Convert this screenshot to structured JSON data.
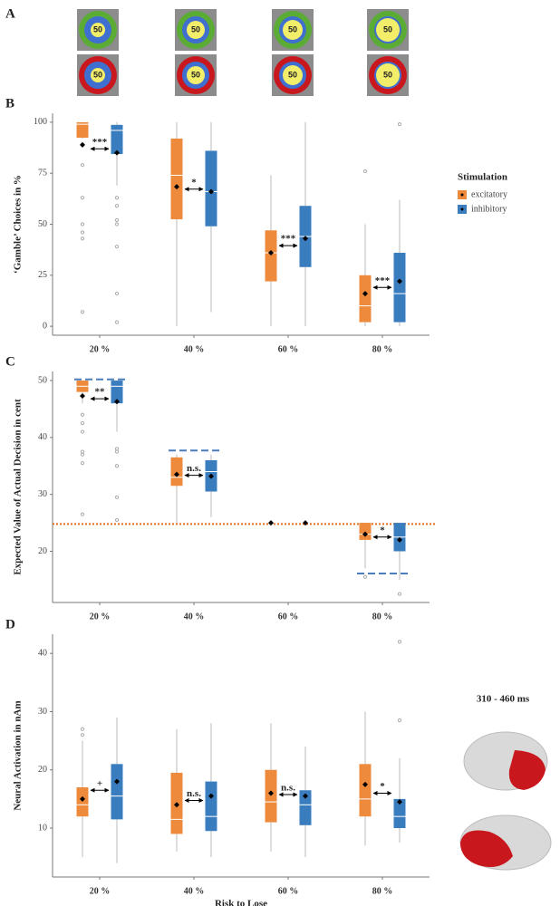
{
  "panel_a": {
    "letter": "A",
    "labels": [
      "50",
      "50",
      "50",
      "50",
      "50",
      "50",
      "50",
      "50"
    ]
  },
  "chart_data": [
    {
      "type": "box",
      "panel_label": "B",
      "y_label": "‘Gamble’ Choices in %",
      "categories": [
        "20 %",
        "40 %",
        "60 %",
        "80 %"
      ],
      "ylim": [
        -4.4,
        104.4
      ],
      "yticks": [
        0,
        25,
        50,
        75,
        100
      ],
      "legend": {
        "title": "Stimulation",
        "position": "right"
      },
      "annotations": [
        "***",
        "*",
        "***",
        "***"
      ],
      "series": [
        {
          "name": "excitatory",
          "color": "#ee8a3c",
          "values": [
            {
              "low": 92,
              "q1": 92.4,
              "median": 99,
              "q3": 100,
              "high": 100,
              "mean": 88.9,
              "outliers": [
                79,
                63,
                50,
                46,
                43,
                7
              ]
            },
            {
              "low": 0,
              "q1": 52.4,
              "median": 74,
              "q3": 92,
              "high": 100,
              "mean": 68.4
            },
            {
              "low": 0,
              "q1": 22,
              "median": 36,
              "q3": 47,
              "high": 74,
              "mean": 36
            },
            {
              "low": 0,
              "q1": 2,
              "median": 10,
              "q3": 25,
              "high": 50,
              "mean": 16,
              "outliers": [
                76
              ]
            }
          ]
        },
        {
          "name": "inhibitory",
          "color": "#3a7dbf",
          "values": [
            {
              "low": 69,
              "q1": 84.4,
              "median": 96,
              "q3": 98.7,
              "high": 100,
              "mean": 85,
              "outliers": [
                63,
                59,
                52,
                50,
                39,
                16,
                2
              ]
            },
            {
              "low": 7,
              "q1": 49,
              "median": 66,
              "q3": 86,
              "high": 100,
              "mean": 66
            },
            {
              "low": 0,
              "q1": 29,
              "median": 44,
              "q3": 59,
              "high": 100,
              "mean": 43
            },
            {
              "low": 0,
              "q1": 2,
              "median": 16,
              "q3": 36,
              "high": 62,
              "mean": 22,
              "outliers": [
                99
              ]
            }
          ]
        }
      ]
    },
    {
      "type": "box",
      "panel_label": "C",
      "y_label": "Expected Value of Actual Decision in cent",
      "categories": [
        "20 %",
        "40 %",
        "60 %",
        "80 %"
      ],
      "ylim": [
        11,
        51.6
      ],
      "yticks": [
        20,
        30,
        40,
        50
      ],
      "annotations": [
        "**",
        "n.s.",
        null,
        "*"
      ],
      "reference_lines": [
        {
          "value": 50.2,
          "color": "#4a7ebb",
          "style": "dashed",
          "category": 0
        },
        {
          "value": 37.7,
          "color": "#4a7ebb",
          "style": "dashed",
          "category": 1
        },
        {
          "value": 16.1,
          "color": "#4a7ebb",
          "style": "dashed",
          "category": 3
        },
        {
          "value": 24.8,
          "color": "#e07020",
          "style": "dotted"
        }
      ],
      "series": [
        {
          "name": "excitatory",
          "color": "#ee8a3c",
          "values": [
            {
              "low": 46,
              "q1": 48,
              "median": 49,
              "q3": 50,
              "high": 50,
              "mean": 47.3,
              "outliers": [
                44,
                42.5,
                41,
                37.5,
                37,
                35.5,
                26.5
              ]
            },
            {
              "low": 25,
              "q1": 31.5,
              "median": 33,
              "q3": 36.5,
              "high": 37,
              "mean": 33.5
            },
            {
              "mean": 25
            },
            {
              "low": 17,
              "q1": 22,
              "median": 23,
              "q3": 25,
              "high": 25,
              "mean": 23,
              "outliers": [
                15.5
              ]
            }
          ]
        },
        {
          "name": "inhibitory",
          "color": "#3a7dbf",
          "values": [
            {
              "low": 41,
              "q1": 46,
              "median": 49,
              "q3": 50,
              "high": 50,
              "mean": 46.3,
              "outliers": [
                38,
                37.5,
                35,
                29.5,
                25.5
              ]
            },
            {
              "low": 26,
              "q1": 30.5,
              "median": 34,
              "q3": 36,
              "high": 37,
              "mean": 33.2
            },
            {
              "mean": 25
            },
            {
              "low": 15,
              "q1": 20,
              "median": 22.5,
              "q3": 25,
              "high": 25,
              "mean": 22,
              "outliers": [
                12.5
              ]
            }
          ]
        }
      ]
    },
    {
      "type": "box",
      "panel_label": "D",
      "y_label": "Neural Activation in nAm",
      "x_label": "Risk to Lose",
      "side_label": "310 - 460 ms",
      "categories": [
        "20 %",
        "40 %",
        "60 %",
        "80 %"
      ],
      "ylim": [
        1.6,
        43.3
      ],
      "yticks": [
        10,
        20,
        30,
        40
      ],
      "annotations": [
        "+",
        "n.s.",
        "n.s.",
        "*"
      ],
      "series": [
        {
          "name": "excitatory",
          "color": "#ee8a3c",
          "values": [
            {
              "low": 5,
              "q1": 12,
              "median": 14,
              "q3": 17,
              "high": 25,
              "mean": 15,
              "outliers": [
                27,
                26
              ]
            },
            {
              "low": 6,
              "q1": 9,
              "median": 11.5,
              "q3": 19.5,
              "high": 27,
              "mean": 14
            },
            {
              "low": 6,
              "q1": 11,
              "median": 14.5,
              "q3": 20,
              "high": 28,
              "mean": 16
            },
            {
              "low": 7,
              "q1": 12,
              "median": 15,
              "q3": 21,
              "high": 30,
              "mean": 17.5
            }
          ]
        },
        {
          "name": "inhibitory",
          "color": "#3a7dbf",
          "values": [
            {
              "low": 4,
              "q1": 11.5,
              "median": 15.5,
              "q3": 21,
              "high": 29,
              "mean": 18
            },
            {
              "low": 5,
              "q1": 9.5,
              "median": 12,
              "q3": 18,
              "high": 28,
              "mean": 15.5
            },
            {
              "low": 5,
              "q1": 10.5,
              "median": 14,
              "q3": 16.5,
              "high": 24,
              "mean": 15.5
            },
            {
              "low": 7.5,
              "q1": 10,
              "median": 12,
              "q3": 15,
              "high": 22,
              "mean": 14.5,
              "outliers": [
                42,
                28.5
              ]
            }
          ]
        }
      ]
    }
  ]
}
